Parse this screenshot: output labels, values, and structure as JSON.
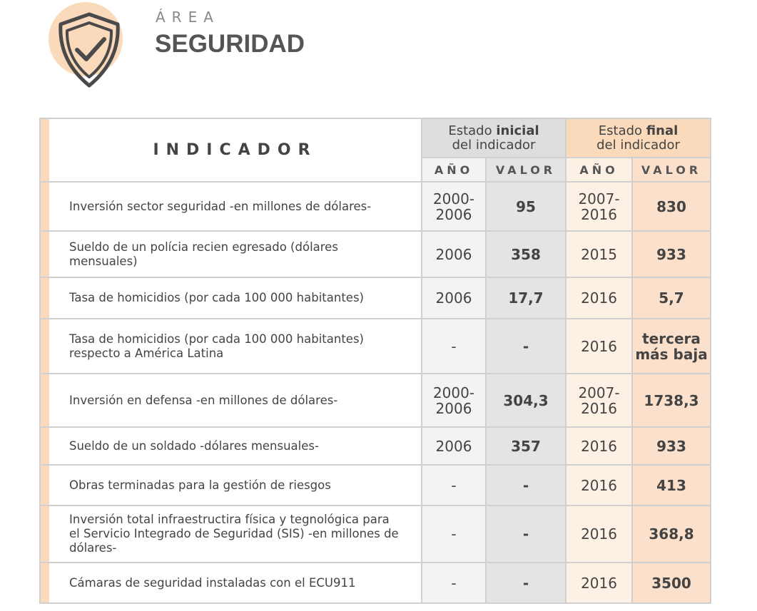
{
  "header": {
    "area": "ÁREA",
    "title": "SEGURIDAD"
  },
  "table": {
    "indicator_header": "INDICADOR",
    "initial_header": {
      "pre": "Estado",
      "bold": "inicial",
      "post": "del indicador"
    },
    "final_header": {
      "pre": "Estado",
      "bold": "final",
      "post": "del indicador"
    },
    "subheaders": [
      "AÑO",
      "VALOR",
      "AÑO",
      "VALOR"
    ],
    "rows": [
      [
        "Inversión sector seguridad -en millones de dólares-",
        "2000-2006",
        "95",
        "2007-2016",
        "830"
      ],
      [
        "Sueldo de un polícia recien egresado (dólares mensuales)",
        "2006",
        "358",
        "2015",
        "933"
      ],
      [
        "Tasa de homicidios (por cada 100 000 habitantes)",
        "2006",
        "17,7",
        "2016",
        "5,7"
      ],
      [
        "Tasa de homicidios (por cada 100 000 habitantes) respecto a  América Latina",
        "-",
        "-",
        "2016",
        "tercera más baja"
      ],
      [
        "Inversión en defensa -en millones de dólares-",
        "2000-2006",
        "304,3",
        "2007-2016",
        "1738,3"
      ],
      [
        "Sueldo de un soldado -dólares mensuales-",
        "2006",
        "357",
        "2016",
        "933"
      ],
      [
        "Obras terminadas para la gestión de riesgos",
        "-",
        "-",
        "2016",
        "413"
      ],
      [
        "Inversión total infraestructira física y tegnológica para el Servicio Integrado de Seguridad (SIS) -en millones de dólares-",
        "-",
        "-",
        "2016",
        "368,8"
      ],
      [
        "Cámaras de seguridad instaladas con el ECU911",
        "-",
        "-",
        "2016",
        "3500"
      ]
    ]
  }
}
